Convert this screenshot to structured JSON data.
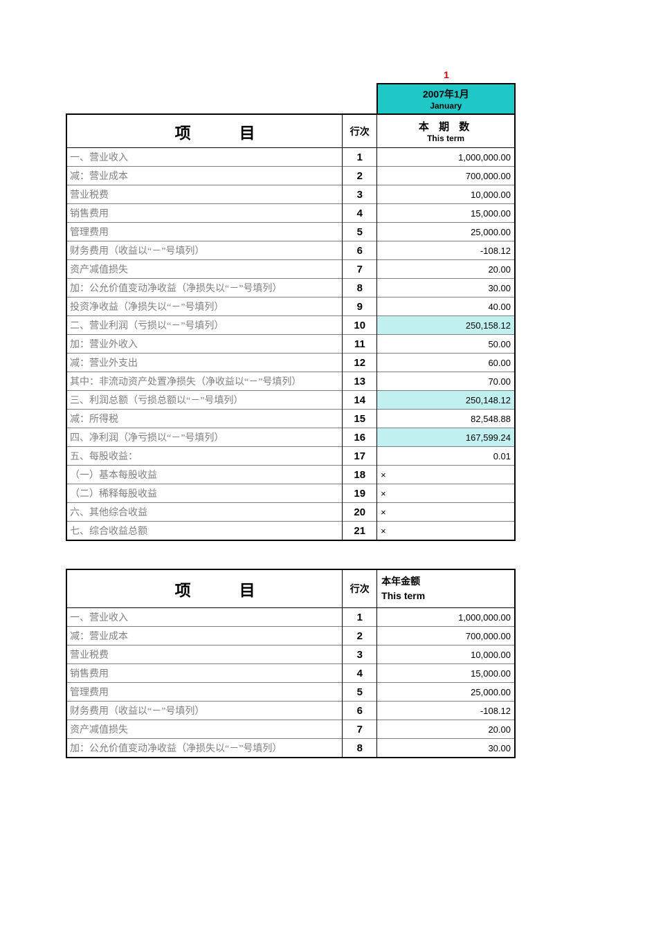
{
  "month_number": "1",
  "table1": {
    "period_cn": "2007年1月",
    "period_en": "January",
    "header_item": "项目",
    "header_lineno": "行次",
    "header_value_cn": "本 期 数",
    "header_value_en": "This term",
    "rows": [
      {
        "item": "一、营业收入",
        "no": "1",
        "val": "1,000,000.00",
        "hl": false,
        "left": false
      },
      {
        "item": "减：营业成本",
        "no": "2",
        "val": "700,000.00",
        "hl": false,
        "left": false
      },
      {
        "item": "营业税费",
        "no": "3",
        "val": "10,000.00",
        "hl": false,
        "left": false
      },
      {
        "item": "销售费用",
        "no": "4",
        "val": "15,000.00",
        "hl": false,
        "left": false
      },
      {
        "item": "管理费用",
        "no": "5",
        "val": "25,000.00",
        "hl": false,
        "left": false
      },
      {
        "item": "财务费用（收益以“－”号填列）",
        "no": "6",
        "val": "-108.12",
        "hl": false,
        "left": false
      },
      {
        "item": "资产减值损失",
        "no": "7",
        "val": "20.00",
        "hl": false,
        "left": false
      },
      {
        "item": "加：公允价值变动净收益（净损失以“－”号填列）",
        "no": "8",
        "val": "30.00",
        "hl": false,
        "left": false
      },
      {
        "item": "投资净收益（净损失以“－”号填列）",
        "no": "9",
        "val": "40.00",
        "hl": false,
        "left": false
      },
      {
        "item": "二、营业利润（亏损以“－”号填列）",
        "no": "10",
        "val": "250,158.12",
        "hl": true,
        "left": false
      },
      {
        "item": "加：营业外收入",
        "no": "11",
        "val": "50.00",
        "hl": false,
        "left": false
      },
      {
        "item": "减：营业外支出",
        "no": "12",
        "val": "60.00",
        "hl": false,
        "left": false
      },
      {
        "item": "其中：非流动资产处置净损失（净收益以“－”号填列）",
        "no": "13",
        "val": "70.00",
        "hl": false,
        "left": false
      },
      {
        "item": "三、利润总额（亏损总额以“－”号填列）",
        "no": "14",
        "val": "250,148.12",
        "hl": true,
        "left": false
      },
      {
        "item": "减：所得税",
        "no": "15",
        "val": "82,548.88",
        "hl": false,
        "left": false
      },
      {
        "item": "四、净利润（净亏损以“－”号填列）",
        "no": "16",
        "val": "167,599.24",
        "hl": true,
        "left": false
      },
      {
        "item": "五、每股收益：",
        "no": "17",
        "val": "0.01",
        "hl": false,
        "left": false
      },
      {
        "item": "（一）基本每股收益",
        "no": "18",
        "val": "×",
        "hl": false,
        "left": true
      },
      {
        "item": "（二）稀释每股收益",
        "no": "19",
        "val": "×",
        "hl": false,
        "left": true
      },
      {
        "item": "六、其他综合收益",
        "no": "20",
        "val": "×",
        "hl": false,
        "left": true
      },
      {
        "item": "七、综合收益总额",
        "no": "21",
        "val": "×",
        "hl": false,
        "left": true
      }
    ]
  },
  "table2": {
    "header_item": "项目",
    "header_lineno": "行次",
    "header_value_cn": "本年金额",
    "header_value_en": "This term",
    "rows": [
      {
        "item": "一、营业收入",
        "no": "1",
        "val": "1,000,000.00"
      },
      {
        "item": "减：营业成本",
        "no": "2",
        "val": "700,000.00"
      },
      {
        "item": "营业税费",
        "no": "3",
        "val": "10,000.00"
      },
      {
        "item": "销售费用",
        "no": "4",
        "val": "15,000.00"
      },
      {
        "item": "管理费用",
        "no": "5",
        "val": "25,000.00"
      },
      {
        "item": "财务费用（收益以“－”号填列）",
        "no": "6",
        "val": "-108.12"
      },
      {
        "item": "资产减值损失",
        "no": "7",
        "val": "20.00"
      },
      {
        "item": "加：公允价值变动净收益（净损失以“－”号填列）",
        "no": "8",
        "val": "30.00"
      }
    ]
  },
  "colors": {
    "teal_header": "#20c7c7",
    "highlight_bg": "#c0f0f0",
    "month_label": "#d00000",
    "item_text": "#808080",
    "border_dark": "#000000",
    "border_light": "#808080",
    "background": "#ffffff"
  }
}
